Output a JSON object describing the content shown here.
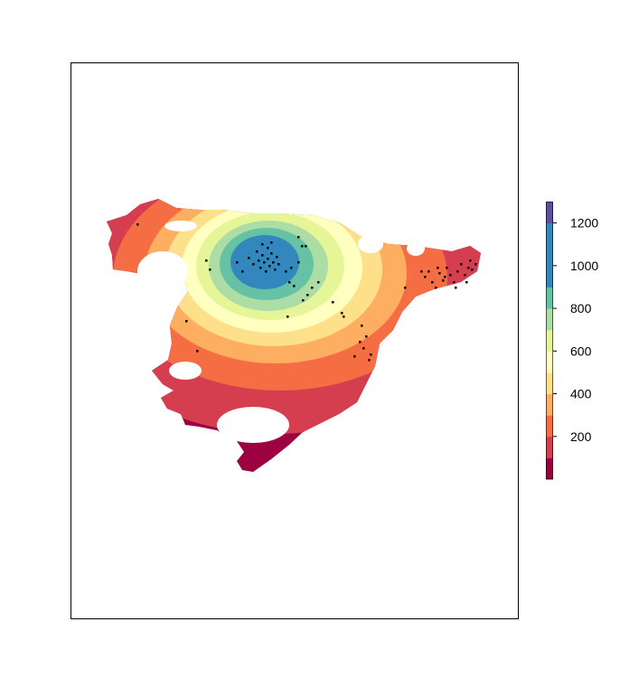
{
  "figure": {
    "type": "raster-map-with-points"
  },
  "legend": {
    "palette": [
      {
        "upper": 100,
        "color": "#9E0142"
      },
      {
        "upper": 200,
        "color": "#D53E4F"
      },
      {
        "upper": 300,
        "color": "#F46D43"
      },
      {
        "upper": 400,
        "color": "#FDAE61"
      },
      {
        "upper": 500,
        "color": "#FEE08B"
      },
      {
        "upper": 600,
        "color": "#FFFFBF"
      },
      {
        "upper": 700,
        "color": "#E6F598"
      },
      {
        "upper": 800,
        "color": "#ABDDA4"
      },
      {
        "upper": 900,
        "color": "#66C2A5"
      },
      {
        "upper": 1000,
        "color": "#3288BD"
      },
      {
        "upper": 1100,
        "color": "#3288BD"
      },
      {
        "upper": 1200,
        "color": "#3288BD"
      },
      {
        "upper": 1300,
        "color": "#5E4FA2"
      }
    ],
    "range": [
      0,
      1300
    ],
    "ticks": [
      "200",
      "400",
      "600",
      "800",
      "1000",
      "1200"
    ],
    "tick_values": [
      200,
      400,
      600,
      800,
      1000,
      1200
    ]
  },
  "colors": {
    "frame": "#000000",
    "points": "#000000",
    "gap": "#ffffff"
  }
}
